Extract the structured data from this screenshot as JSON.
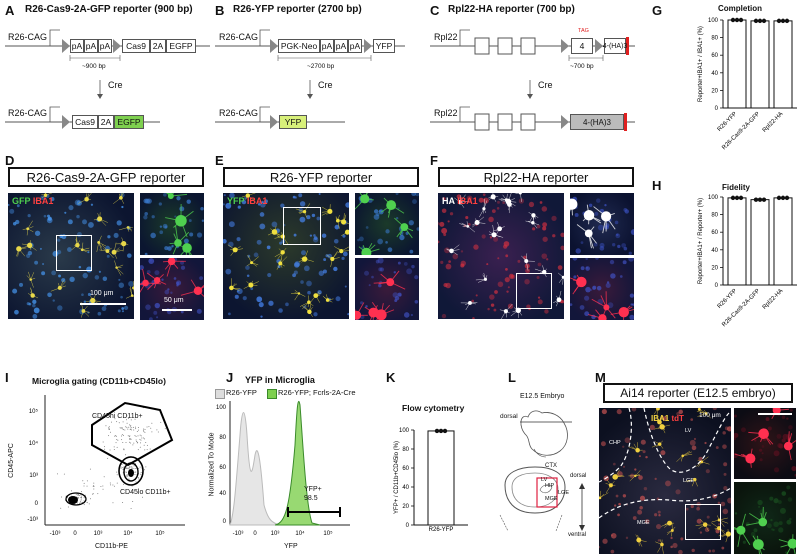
{
  "panels": {
    "A": {
      "letter": "A",
      "title": "R26-Cas9-2A-GFP reporter (900 bp)",
      "promoter": "R26-CAG",
      "seg1": [
        "pA",
        "pA",
        "pA"
      ],
      "cas9": "Cas9",
      "twoA": "2A",
      "egfp": "EGFP",
      "bp": "~900 bp",
      "cre": "Cre",
      "after": [
        "Cas9",
        "2A",
        "EGFP"
      ]
    },
    "B": {
      "letter": "B",
      "title": "R26-YFP reporter (2700 bp)",
      "promoter": "R26-CAG",
      "neo": "PGK-Neo",
      "seg1": [
        "pA",
        "pA",
        "pA"
      ],
      "yfp": "YFP",
      "bp": "~2700 bp",
      "cre": "Cre",
      "after": "YFP"
    },
    "C": {
      "letter": "C",
      "title": "Rpl22-HA reporter (700 bp)",
      "gene": "Rpl22",
      "exon4": "4",
      "tag": "TAG",
      "ha": "4-(HA)3",
      "bp": "~700 bp",
      "cre": "Cre"
    },
    "D": {
      "letter": "D",
      "title": "R26-Cas9-2A-GFP reporter",
      "label1": "GFP",
      "label2": "IBA1",
      "scale1": "100 μm",
      "scale2": "50 μm"
    },
    "E": {
      "letter": "E",
      "title": "R26-YFP reporter",
      "label1": "YFP",
      "label2": "IBA1"
    },
    "F": {
      "letter": "F",
      "title": "Rpl22-HA reporter",
      "label1": "HA",
      "label2": "IBA1"
    },
    "G": {
      "letter": "G",
      "title": "Completion",
      "ylabel": "Reporter+IBA1+ / IBA1+ (%)"
    },
    "H": {
      "letter": "H",
      "title": "Fidelity",
      "ylabel": "Reporter+IBA1+ / Reporter+ (%)"
    },
    "I": {
      "letter": "I",
      "title": "Microglia gating (CD11b+CD45lo)",
      "ylabel": "CD45-APC",
      "xlabel": "CD11b-PE",
      "gate1": "CD45hi CD11b+",
      "gate2": "CD45lo CD11b+"
    },
    "J": {
      "letter": "J",
      "title": "YFP in Microglia",
      "ylabel": "Normalized To Mode",
      "xlabel": "YFP",
      "legend1": "R26-YFP",
      "legend2": "R26-YFP; Fcrls-2A-Cre",
      "gate": "YFP+",
      "gate_value": "98.5"
    },
    "K": {
      "letter": "K",
      "title": "Flow cytometry",
      "ylabel": "YFP+ / CD11b+CD45lo (%)",
      "xcat": "R26-YFP"
    },
    "L": {
      "letter": "L",
      "title": "E12.5 Embryo",
      "dorsal1": "dorsal",
      "ctx": "CTX",
      "lv": "LV",
      "hip": "HIP",
      "lge": "LGE",
      "mge": "MGE",
      "dorsal2": "dorsal",
      "ventral": "ventral"
    },
    "M": {
      "letter": "M",
      "title": "Ai14 reporter (E12.5 embryo)",
      "label1": "IBA1",
      "label2": "tdT",
      "scale": "100 μm",
      "regions": [
        "CHP",
        "LV",
        "LGE",
        "MGE"
      ]
    }
  },
  "chart_data": [
    {
      "type": "bar",
      "title": "Completion",
      "ylabel": "Reporter+IBA1+ / IBA1+ (%)",
      "categories": [
        "R26-YFP",
        "R26-Cas9-2A-GFP",
        "Rpl22-HA"
      ],
      "values": [
        100,
        99,
        99
      ],
      "ylim": [
        0,
        100
      ],
      "yticks": [
        0,
        20,
        40,
        60,
        80,
        100
      ]
    },
    {
      "type": "bar",
      "title": "Fidelity",
      "ylabel": "Reporter+IBA1+ / Reporter+ (%)",
      "categories": [
        "R26-YFP",
        "R26-Cas9-2A-GFP",
        "Rpl22-HA"
      ],
      "values": [
        99,
        97,
        99
      ],
      "ylim": [
        0,
        100
      ],
      "yticks": [
        0,
        20,
        40,
        60,
        80,
        100
      ]
    },
    {
      "type": "bar",
      "title": "Flow cytometry",
      "ylabel": "YFP+ / CD11b+CD45lo (%)",
      "categories": [
        "R26-YFP"
      ],
      "values": [
        99
      ],
      "ylim": [
        0,
        100
      ],
      "yticks": [
        0,
        20,
        40,
        60,
        80,
        100
      ]
    }
  ]
}
